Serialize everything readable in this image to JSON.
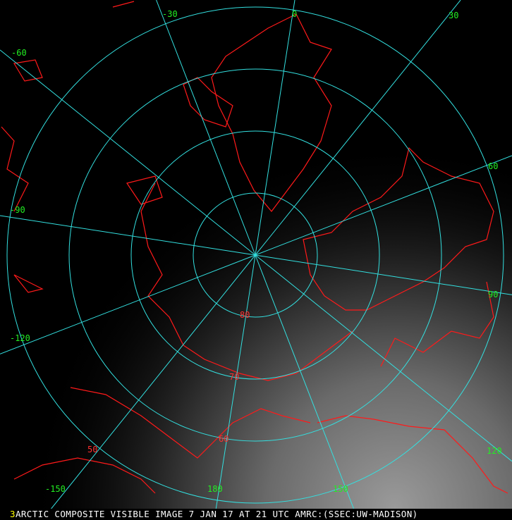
{
  "caption": {
    "channel_number": "3",
    "text": "ARCTIC COMPOSITE VISIBLE IMAGE 7 JAN 17 AT 21 UTC AMRC:(SSEC:UW-MADISON)"
  },
  "map": {
    "projection": "polar stereographic (north pole)",
    "colors": {
      "grid": "#33e0e0",
      "coastline": "#ff1a1a",
      "labels": "#22ee22",
      "channel_number": "#ffff00",
      "caption": "#ffffff"
    },
    "longitude_labels": [
      "-30",
      "0",
      "30",
      "-60",
      "60",
      "-90",
      "90",
      "-120",
      "120",
      "-150",
      "150",
      "180"
    ],
    "latitude_labels": [
      "80",
      "70",
      "60",
      "50"
    ],
    "longitudes": [
      -150,
      -120,
      -90,
      -60,
      -30,
      0,
      30,
      60,
      90,
      120,
      150,
      180
    ],
    "latitudes": [
      80,
      70,
      60,
      50
    ]
  }
}
